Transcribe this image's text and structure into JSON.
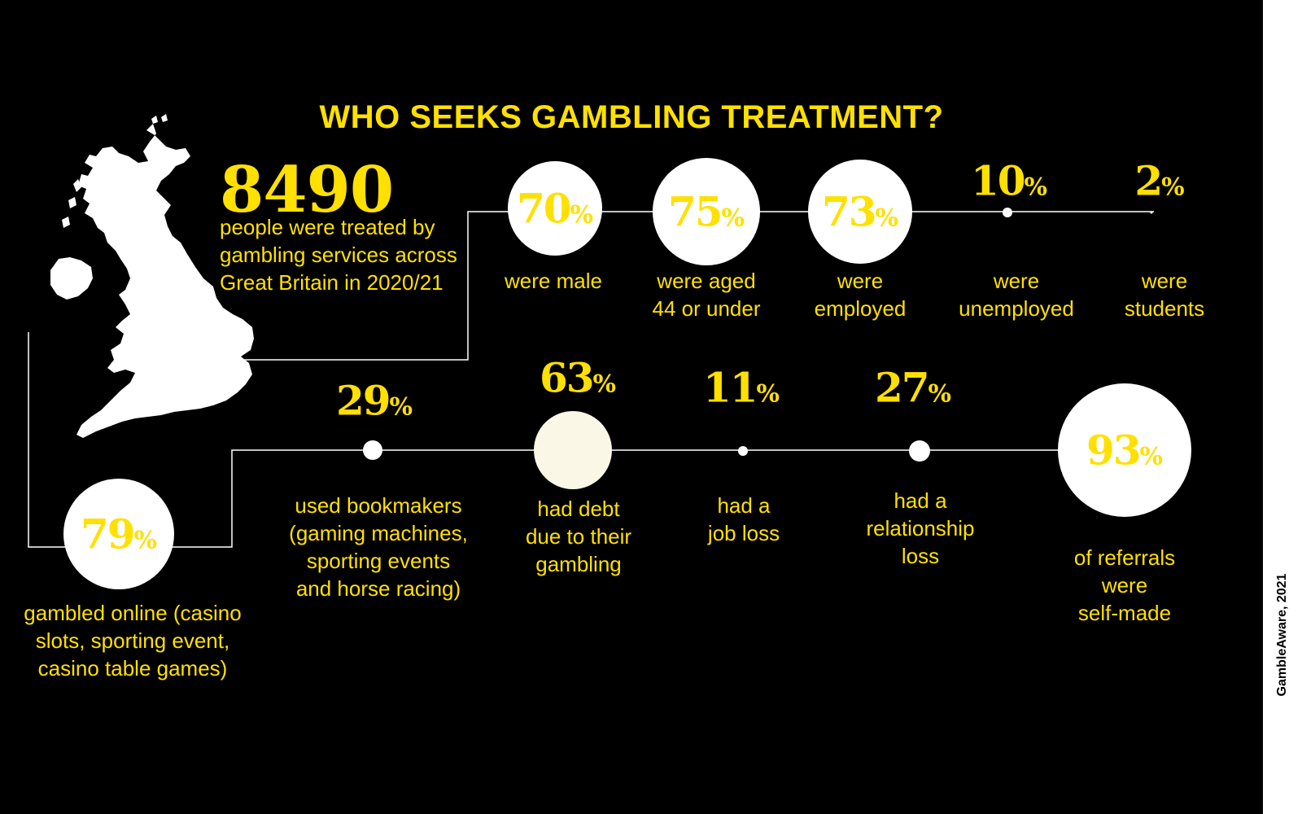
{
  "title": "WHO SEEKS GAMBLING TREATMENT?",
  "headline": {
    "value": "8490",
    "description": "people were treated by gambling services across Great Britain in 2020/21"
  },
  "stats_top": [
    {
      "value": "70",
      "unit": "%",
      "label": "were male"
    },
    {
      "value": "75",
      "unit": "%",
      "label": "were aged\n44 or under"
    },
    {
      "value": "73",
      "unit": "%",
      "label": "were\nemployed"
    },
    {
      "value": "10",
      "unit": "%",
      "label": "were\nunemployed"
    },
    {
      "value": "2",
      "unit": "%",
      "label": "were\nstudents"
    }
  ],
  "stats_bottom": [
    {
      "value": "79",
      "unit": "%",
      "label": "gambled online (casino\nslots, sporting event,\ncasino table games)"
    },
    {
      "value": "29",
      "unit": "%",
      "label": "used bookmakers\n(gaming machines,\nsporting events\nand horse racing)"
    },
    {
      "value": "63",
      "unit": "%",
      "label": "had debt\ndue to their\ngambling"
    },
    {
      "value": "11",
      "unit": "%",
      "label": "had a\njob loss"
    },
    {
      "value": "27",
      "unit": "%",
      "label": "had a\nrelationship\nloss"
    },
    {
      "value": "93",
      "unit": "%",
      "label": "of referrals were\nself-made"
    }
  ],
  "source": "GambleAware, 2021",
  "colors": {
    "background": "#000000",
    "accent": "#ffe000",
    "circle": "#ffffff",
    "line": "#ffffff"
  },
  "icons": {
    "map": "great-britain-map-icon"
  }
}
